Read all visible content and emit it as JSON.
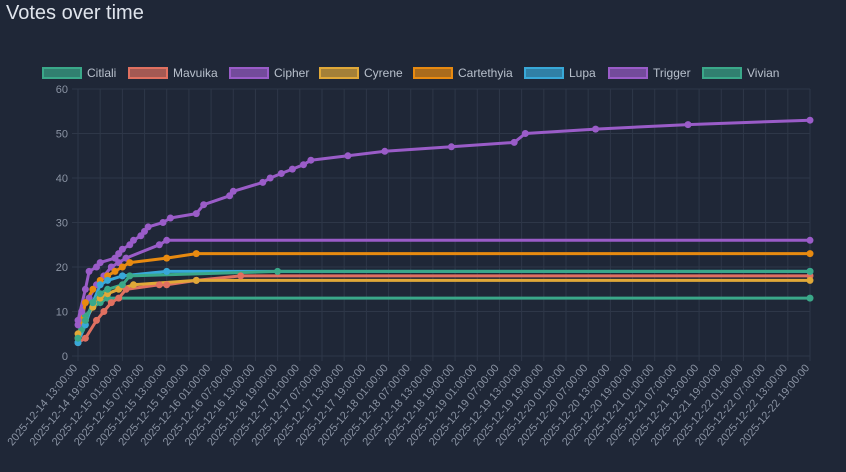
{
  "chart_data": {
    "type": "line",
    "title": "Votes over time",
    "xlabel": "",
    "ylabel": "",
    "ylim": [
      0,
      60
    ],
    "yticks": [
      0,
      10,
      20,
      30,
      40,
      50,
      60
    ],
    "grid": true,
    "legend_position": "top",
    "x_tick_labels": [
      "2025-12-14 13:00:00",
      "2025-12-14 19:00:00",
      "2025-12-15 01:00:00",
      "2025-12-15 07:00:00",
      "2025-12-15 13:00:00",
      "2025-12-15 19:00:00",
      "2025-12-16 01:00:00",
      "2025-12-16 07:00:00",
      "2025-12-16 13:00:00",
      "2025-12-16 19:00:00",
      "2025-12-17 01:00:00",
      "2025-12-17 07:00:00",
      "2025-12-17 13:00:00",
      "2025-12-17 19:00:00",
      "2025-12-18 01:00:00",
      "2025-12-18 07:00:00",
      "2025-12-18 13:00:00",
      "2025-12-18 19:00:00",
      "2025-12-19 01:00:00",
      "2025-12-19 07:00:00",
      "2025-12-19 13:00:00",
      "2025-12-19 19:00:00",
      "2025-12-20 01:00:00",
      "2025-12-20 07:00:00",
      "2025-12-20 13:00:00",
      "2025-12-20 19:00:00",
      "2025-12-21 01:00:00",
      "2025-12-21 07:00:00",
      "2025-12-21 13:00:00",
      "2025-12-21 19:00:00",
      "2025-12-22 01:00:00",
      "2025-12-22 07:00:00",
      "2025-12-22 13:00:00",
      "2025-12-22 19:00:00"
    ],
    "series": [
      {
        "name": "Citlali",
        "color": "#3aa889",
        "points": [
          [
            "2025-12-14 13:00",
            3
          ],
          [
            "2025-12-14 14:00",
            6
          ],
          [
            "2025-12-14 15:00",
            9
          ],
          [
            "2025-12-14 17:00",
            11
          ],
          [
            "2025-12-14 19:00",
            12
          ],
          [
            "2025-12-14 21:00",
            13
          ],
          [
            "2025-12-22 19:00",
            13
          ]
        ]
      },
      {
        "name": "Mavuika",
        "color": "#e07060",
        "points": [
          [
            "2025-12-14 13:00",
            3
          ],
          [
            "2025-12-14 15:00",
            4
          ],
          [
            "2025-12-14 18:00",
            8
          ],
          [
            "2025-12-14 20:00",
            10
          ],
          [
            "2025-12-14 22:00",
            12
          ],
          [
            "2025-12-15 00:00",
            13
          ],
          [
            "2025-12-15 02:00",
            15
          ],
          [
            "2025-12-15 11:00",
            16
          ],
          [
            "2025-12-15 13:00",
            16
          ],
          [
            "2025-12-15 21:00",
            17
          ],
          [
            "2025-12-16 09:00",
            18
          ],
          [
            "2025-12-22 19:00",
            18
          ]
        ]
      },
      {
        "name": "Cipher",
        "color": "#9a5cc8",
        "points": [
          [
            "2025-12-14 13:00",
            7
          ],
          [
            "2025-12-14 14:00",
            10
          ],
          [
            "2025-12-14 16:00",
            13
          ],
          [
            "2025-12-14 18:00",
            16
          ],
          [
            "2025-12-14 20:00",
            18
          ],
          [
            "2025-12-14 22:00",
            20
          ],
          [
            "2025-12-15 00:00",
            21
          ],
          [
            "2025-12-15 02:00",
            22
          ],
          [
            "2025-12-15 11:00",
            25
          ],
          [
            "2025-12-15 13:00",
            26
          ],
          [
            "2025-12-22 19:00",
            26
          ]
        ]
      },
      {
        "name": "Cyrene",
        "color": "#e0a838",
        "points": [
          [
            "2025-12-14 13:00",
            5
          ],
          [
            "2025-12-14 15:00",
            8
          ],
          [
            "2025-12-14 17:00",
            11
          ],
          [
            "2025-12-14 19:00",
            13
          ],
          [
            "2025-12-14 21:00",
            14
          ],
          [
            "2025-12-15 00:00",
            15
          ],
          [
            "2025-12-15 04:00",
            16
          ],
          [
            "2025-12-15 21:00",
            17
          ],
          [
            "2025-12-22 19:00",
            17
          ]
        ]
      },
      {
        "name": "Cartethyia",
        "color": "#e88a10",
        "points": [
          [
            "2025-12-14 13:00",
            4
          ],
          [
            "2025-12-14 14:00",
            8
          ],
          [
            "2025-12-14 15:00",
            12
          ],
          [
            "2025-12-14 17:00",
            15
          ],
          [
            "2025-12-14 19:00",
            17
          ],
          [
            "2025-12-14 21:00",
            18
          ],
          [
            "2025-12-14 23:00",
            19
          ],
          [
            "2025-12-15 01:00",
            20
          ],
          [
            "2025-12-15 03:00",
            21
          ],
          [
            "2025-12-15 13:00",
            22
          ],
          [
            "2025-12-15 21:00",
            23
          ],
          [
            "2025-12-22 19:00",
            23
          ]
        ]
      },
      {
        "name": "Lupa",
        "color": "#38a8d8",
        "points": [
          [
            "2025-12-14 13:00",
            3
          ],
          [
            "2025-12-14 15:00",
            7
          ],
          [
            "2025-12-14 17:00",
            12
          ],
          [
            "2025-12-14 19:00",
            16
          ],
          [
            "2025-12-14 21:00",
            17
          ],
          [
            "2025-12-15 01:00",
            18
          ],
          [
            "2025-12-15 13:00",
            19
          ],
          [
            "2025-12-22 19:00",
            19
          ]
        ]
      },
      {
        "name": "Trigger",
        "color": "#9a5cc8",
        "points": [
          [
            "2025-12-14 13:00",
            8
          ],
          [
            "2025-12-14 15:00",
            15
          ],
          [
            "2025-12-14 16:00",
            19
          ],
          [
            "2025-12-14 18:00",
            20
          ],
          [
            "2025-12-14 19:00",
            21
          ],
          [
            "2025-12-14 23:00",
            22
          ],
          [
            "2025-12-15 00:00",
            23
          ],
          [
            "2025-12-15 01:00",
            24
          ],
          [
            "2025-12-15 03:00",
            25
          ],
          [
            "2025-12-15 04:00",
            26
          ],
          [
            "2025-12-15 06:00",
            27
          ],
          [
            "2025-12-15 07:00",
            28
          ],
          [
            "2025-12-15 08:00",
            29
          ],
          [
            "2025-12-15 12:00",
            30
          ],
          [
            "2025-12-15 14:00",
            31
          ],
          [
            "2025-12-15 21:00",
            32
          ],
          [
            "2025-12-15 23:00",
            34
          ],
          [
            "2025-12-16 06:00",
            36
          ],
          [
            "2025-12-16 07:00",
            37
          ],
          [
            "2025-12-16 15:00",
            39
          ],
          [
            "2025-12-16 17:00",
            40
          ],
          [
            "2025-12-16 20:00",
            41
          ],
          [
            "2025-12-16 23:00",
            42
          ],
          [
            "2025-12-17 02:00",
            43
          ],
          [
            "2025-12-17 04:00",
            44
          ],
          [
            "2025-12-17 14:00",
            45
          ],
          [
            "2025-12-18 00:00",
            46
          ],
          [
            "2025-12-18 18:00",
            47
          ],
          [
            "2025-12-19 11:00",
            48
          ],
          [
            "2025-12-19 14:00",
            50
          ],
          [
            "2025-12-20 09:00",
            51
          ],
          [
            "2025-12-21 10:00",
            52
          ],
          [
            "2025-12-22 19:00",
            53
          ]
        ]
      },
      {
        "name": "Vivian",
        "color": "#3aa889",
        "points": [
          [
            "2025-12-14 13:00",
            4
          ],
          [
            "2025-12-14 15:00",
            8
          ],
          [
            "2025-12-14 17:00",
            12
          ],
          [
            "2025-12-14 19:00",
            14
          ],
          [
            "2025-12-14 21:00",
            15
          ],
          [
            "2025-12-15 01:00",
            16
          ],
          [
            "2025-12-15 03:00",
            18
          ],
          [
            "2025-12-16 19:00",
            19
          ],
          [
            "2025-12-22 19:00",
            19
          ]
        ]
      }
    ]
  }
}
